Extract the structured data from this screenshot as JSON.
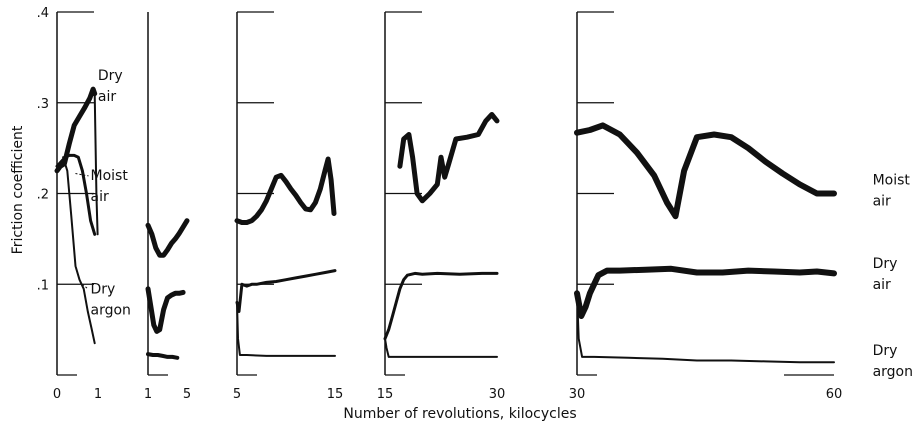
{
  "chart_data": {
    "type": "line",
    "title": "",
    "ylabel": "Friction coefficient",
    "xlabel": "Number of revolutions, kilocycles",
    "ylim": [
      0,
      0.4
    ],
    "y_ticks": [
      ".1",
      ".2",
      ".3",
      ".4"
    ],
    "y_tick_values": [
      0.1,
      0.2,
      0.3,
      0.4
    ],
    "grid": false,
    "color": "#111111",
    "panels": [
      {
        "xlim": [
          0,
          1
        ],
        "x_ticks": [
          "0",
          "1"
        ],
        "x_tick_values": [
          0,
          1
        ],
        "show_y_ticks": true,
        "series": [
          {
            "key": "dry_air",
            "width": 5,
            "x": [
              0,
              0.08,
              0.18,
              0.3,
              0.42,
              0.55,
              0.68,
              0.8,
              0.88,
              0.92
            ],
            "y": [
              0.225,
              0.23,
              0.233,
              0.255,
              0.275,
              0.285,
              0.295,
              0.305,
              0.315,
              0.31
            ]
          },
          {
            "key": "moist_air",
            "width": 3,
            "x": [
              0,
              0.1,
              0.2,
              0.3,
              0.42,
              0.52,
              0.62,
              0.72,
              0.82,
              0.92
            ],
            "y": [
              0.23,
              0.235,
              0.24,
              0.242,
              0.242,
              0.24,
              0.225,
              0.2,
              0.17,
              0.155
            ]
          },
          {
            "key": "dry_argon",
            "width": 2,
            "x": [
              0.15,
              0.25,
              0.35,
              0.45,
              0.55,
              0.65,
              0.75,
              0.85,
              0.92
            ],
            "y": [
              0.24,
              0.225,
              0.175,
              0.12,
              0.105,
              0.095,
              0.07,
              0.05,
              0.035
            ]
          },
          {
            "key": "drop",
            "width": 2,
            "x": [
              0.92,
              0.96,
              0.99
            ],
            "y": [
              0.31,
              0.2,
              0.155
            ]
          }
        ],
        "annotations": [
          {
            "lines": [
              "Dry",
              "air"
            ],
            "x": 0.9,
            "y": 0.325,
            "to_x": 0.9,
            "to_y": 0.325
          },
          {
            "lines": [
              "Moist",
              "air"
            ],
            "x": 0.72,
            "y": 0.215,
            "to_x": 0.45,
            "to_y": 0.222
          },
          {
            "lines": [
              "Dry",
              "argon"
            ],
            "x": 0.72,
            "y": 0.09,
            "to_x": 0.62,
            "to_y": 0.1
          }
        ]
      },
      {
        "xlim": [
          1,
          5
        ],
        "x_ticks": [
          "1",
          "5"
        ],
        "x_tick_values": [
          1,
          5
        ],
        "show_y_ticks": false,
        "series": [
          {
            "key": "moist_air",
            "width": 5,
            "x": [
              1.0,
              1.4,
              1.8,
              2.2,
              2.6,
              3.0,
              3.4,
              3.8,
              4.2,
              4.6,
              5.0
            ],
            "y": [
              0.165,
              0.155,
              0.14,
              0.132,
              0.132,
              0.138,
              0.145,
              0.15,
              0.156,
              0.163,
              0.17
            ]
          },
          {
            "key": "dry_air",
            "width": 5,
            "x": [
              1.0,
              1.3,
              1.6,
              1.9,
              2.2,
              2.6,
              3.0,
              3.4,
              3.8,
              4.2,
              4.6
            ],
            "y": [
              0.095,
              0.075,
              0.055,
              0.048,
              0.05,
              0.072,
              0.085,
              0.088,
              0.09,
              0.09,
              0.091
            ]
          },
          {
            "key": "dry_argon",
            "width": 4,
            "x": [
              1.0,
              1.5,
              2.0,
              2.5,
              3.0,
              3.5,
              4.0
            ],
            "y": [
              0.023,
              0.022,
              0.022,
              0.021,
              0.02,
              0.02,
              0.019
            ]
          }
        ],
        "annotations": []
      },
      {
        "xlim": [
          5,
          15
        ],
        "x_ticks": [
          "5",
          "15"
        ],
        "x_tick_values": [
          5,
          15
        ],
        "show_y_ticks": true,
        "series": [
          {
            "key": "moist_air",
            "width": 5,
            "x": [
              5.0,
              5.5,
              6.0,
              6.5,
              7.0,
              7.5,
              8.0,
              8.5,
              9.0,
              9.5,
              10.0,
              10.5,
              11.0,
              11.5,
              12.0,
              12.5,
              13.0,
              13.5,
              14.0,
              14.3,
              14.6,
              14.9
            ],
            "y": [
              0.17,
              0.168,
              0.168,
              0.17,
              0.175,
              0.182,
              0.192,
              0.205,
              0.218,
              0.22,
              0.213,
              0.205,
              0.198,
              0.19,
              0.183,
              0.182,
              0.19,
              0.205,
              0.226,
              0.238,
              0.215,
              0.178
            ]
          },
          {
            "key": "dry_air",
            "width": 3,
            "x": [
              5.0,
              5.2,
              5.5,
              6.0,
              6.5,
              7.0,
              8.0,
              9.0,
              10.0,
              11.0,
              12.0,
              13.0,
              14.0,
              15.0
            ],
            "y": [
              0.08,
              0.07,
              0.1,
              0.098,
              0.1,
              0.1,
              0.102,
              0.103,
              0.105,
              0.107,
              0.109,
              0.111,
              0.113,
              0.115
            ]
          },
          {
            "key": "dry_argon",
            "width": 2,
            "x": [
              5.0,
              5.1,
              5.3,
              6.0,
              8.0,
              10.0,
              12.0,
              14.0,
              15.0
            ],
            "y": [
              0.08,
              0.04,
              0.022,
              0.022,
              0.021,
              0.021,
              0.021,
              0.021,
              0.021
            ]
          }
        ],
        "annotations": []
      },
      {
        "xlim": [
          15,
          30
        ],
        "x_ticks": [
          "15",
          "30"
        ],
        "x_tick_values": [
          15,
          30
        ],
        "show_y_ticks": true,
        "series": [
          {
            "key": "moist_air",
            "width": 5,
            "x": [
              17.0,
              17.5,
              18.2,
              18.7,
              19.3,
              20.0,
              21.0,
              22.0,
              22.5,
              23.0,
              23.5,
              24.5,
              26.0,
              27.5,
              28.5,
              29.3,
              30.0
            ],
            "y": [
              0.23,
              0.26,
              0.265,
              0.24,
              0.2,
              0.192,
              0.2,
              0.21,
              0.24,
              0.218,
              0.232,
              0.26,
              0.262,
              0.265,
              0.28,
              0.287,
              0.28
            ]
          },
          {
            "key": "dry_air",
            "width": 3,
            "x": [
              15.0,
              15.5,
              16.0,
              16.5,
              17.0,
              17.5,
              18.0,
              19.0,
              20.0,
              22.0,
              25.0,
              28.0,
              30.0
            ],
            "y": [
              0.04,
              0.05,
              0.065,
              0.08,
              0.095,
              0.105,
              0.11,
              0.112,
              0.111,
              0.112,
              0.111,
              0.112,
              0.112
            ]
          },
          {
            "key": "dry_argon",
            "width": 2,
            "x": [
              15.0,
              15.2,
              15.5,
              16.5,
              20.0,
              25.0,
              30.0
            ],
            "y": [
              0.04,
              0.03,
              0.02,
              0.02,
              0.02,
              0.02,
              0.02
            ]
          }
        ],
        "annotations": []
      },
      {
        "xlim": [
          30,
          60
        ],
        "x_ticks": [
          "30",
          "60"
        ],
        "x_tick_values": [
          30,
          60
        ],
        "show_y_ticks": true,
        "series": [
          {
            "key": "moist_air",
            "width": 6,
            "x": [
              30.0,
              31.5,
              33.0,
              35.0,
              37.0,
              39.0,
              40.5,
              41.5,
              42.5,
              44.0,
              46.0,
              48.0,
              50.0,
              52.0,
              54.0,
              56.0,
              58.0,
              60.0
            ],
            "y": [
              0.267,
              0.27,
              0.275,
              0.265,
              0.245,
              0.22,
              0.19,
              0.175,
              0.225,
              0.262,
              0.265,
              0.262,
              0.25,
              0.235,
              0.222,
              0.21,
              0.2,
              0.2
            ]
          },
          {
            "key": "dry_air",
            "width": 6,
            "x": [
              30.0,
              30.5,
              31.0,
              31.5,
              32.0,
              32.5,
              33.5,
              35.0,
              38.0,
              41.0,
              44.0,
              47.0,
              50.0,
              53.0,
              56.0,
              58.0,
              60.0
            ],
            "y": [
              0.09,
              0.065,
              0.075,
              0.09,
              0.1,
              0.11,
              0.115,
              0.115,
              0.116,
              0.117,
              0.113,
              0.113,
              0.115,
              0.114,
              0.113,
              0.114,
              0.112
            ]
          },
          {
            "key": "dry_argon",
            "width": 2,
            "x": [
              30.0,
              30.2,
              30.6,
              32.0,
              36.0,
              40.0,
              44.0,
              48.0,
              52.0,
              56.0,
              60.0
            ],
            "y": [
              0.09,
              0.04,
              0.02,
              0.02,
              0.019,
              0.018,
              0.016,
              0.016,
              0.015,
              0.014,
              0.014
            ]
          }
        ],
        "annotations": [
          {
            "lines": [
              "Moist",
              "air"
            ],
            "x": 61,
            "y": 0.21
          },
          {
            "lines": [
              "Dry",
              "air"
            ],
            "x": 61,
            "y": 0.118
          },
          {
            "lines": [
              "Dry",
              "argon"
            ],
            "x": 61,
            "y": 0.022
          }
        ]
      }
    ]
  }
}
